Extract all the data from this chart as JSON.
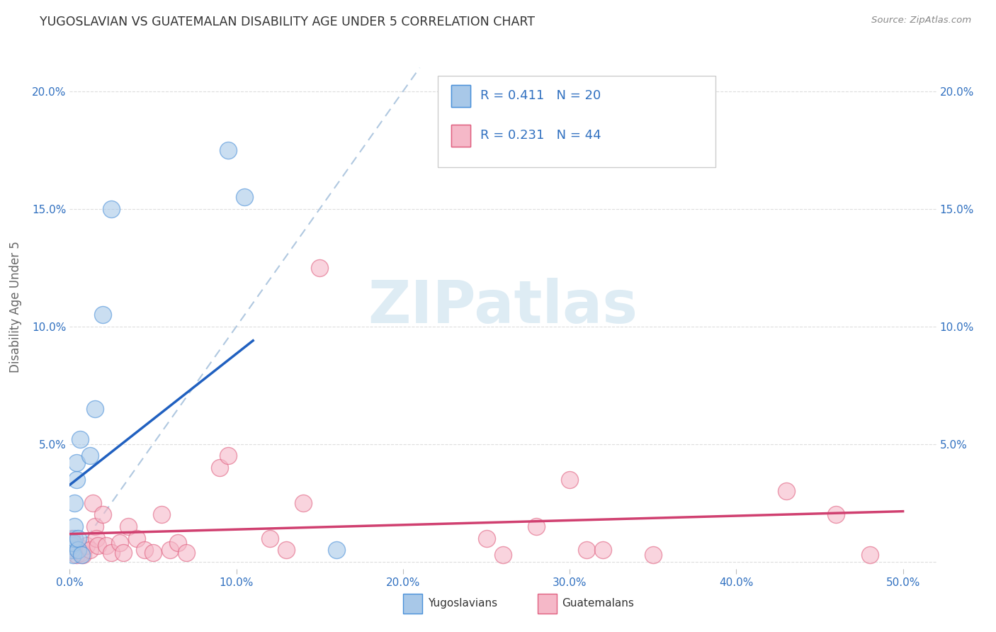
{
  "title": "YUGOSLAVIAN VS GUATEMALAN DISABILITY AGE UNDER 5 CORRELATION CHART",
  "source": "Source: ZipAtlas.com",
  "ylabel": "Disability Age Under 5",
  "ytick_labels": [
    "",
    "5.0%",
    "10.0%",
    "15.0%",
    "20.0%"
  ],
  "ytick_values": [
    0.0,
    0.05,
    0.1,
    0.15,
    0.2
  ],
  "xtick_values": [
    0.0,
    0.1,
    0.2,
    0.3,
    0.4,
    0.5
  ],
  "xtick_labels": [
    "0.0%",
    "10.0%",
    "20.0%",
    "30.0%",
    "40.0%",
    "50.0%"
  ],
  "xlim": [
    0.0,
    0.52
  ],
  "ylim": [
    -0.003,
    0.22
  ],
  "color_blue_fill": "#a8c8e8",
  "color_blue_edge": "#4a90d9",
  "color_pink_fill": "#f5b8c8",
  "color_pink_edge": "#e06080",
  "color_blue_line": "#2060c0",
  "color_pink_line": "#d04070",
  "color_dashed": "#b0c8e0",
  "color_blue_text": "#3070c0",
  "color_grid": "#dddddd",
  "watermark_color": "#d0e4f0",
  "yug_points_x": [
    0.001,
    0.001,
    0.002,
    0.002,
    0.003,
    0.003,
    0.003,
    0.004,
    0.004,
    0.005,
    0.005,
    0.006,
    0.007,
    0.012,
    0.015,
    0.02,
    0.025,
    0.095,
    0.105,
    0.16
  ],
  "yug_points_y": [
    0.005,
    0.007,
    0.003,
    0.008,
    0.01,
    0.015,
    0.025,
    0.035,
    0.042,
    0.005,
    0.01,
    0.052,
    0.003,
    0.045,
    0.065,
    0.105,
    0.15,
    0.175,
    0.155,
    0.005
  ],
  "guat_points_x": [
    0.001,
    0.002,
    0.003,
    0.003,
    0.004,
    0.005,
    0.006,
    0.007,
    0.008,
    0.01,
    0.012,
    0.014,
    0.015,
    0.016,
    0.017,
    0.02,
    0.022,
    0.025,
    0.03,
    0.032,
    0.035,
    0.04,
    0.045,
    0.05,
    0.055,
    0.06,
    0.065,
    0.07,
    0.09,
    0.095,
    0.12,
    0.13,
    0.14,
    0.15,
    0.25,
    0.26,
    0.28,
    0.3,
    0.31,
    0.32,
    0.35,
    0.43,
    0.46,
    0.48
  ],
  "guat_points_y": [
    0.01,
    0.008,
    0.005,
    0.007,
    0.003,
    0.005,
    0.006,
    0.004,
    0.003,
    0.007,
    0.005,
    0.025,
    0.015,
    0.01,
    0.007,
    0.02,
    0.007,
    0.004,
    0.008,
    0.004,
    0.015,
    0.01,
    0.005,
    0.004,
    0.02,
    0.005,
    0.008,
    0.004,
    0.04,
    0.045,
    0.01,
    0.005,
    0.025,
    0.125,
    0.01,
    0.003,
    0.015,
    0.035,
    0.005,
    0.005,
    0.003,
    0.03,
    0.02,
    0.003
  ],
  "legend1_text": "R = 0.411   N = 20",
  "legend2_text": "R = 0.231   N = 44",
  "background_color": "#ffffff"
}
